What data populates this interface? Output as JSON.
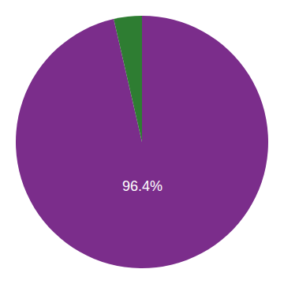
{
  "chart_data": {
    "type": "pie",
    "values": [
      96.4,
      3.6
    ],
    "colors": [
      "#7B2D8B",
      "#2E7D32"
    ],
    "annotations": [
      "96.4%"
    ]
  }
}
